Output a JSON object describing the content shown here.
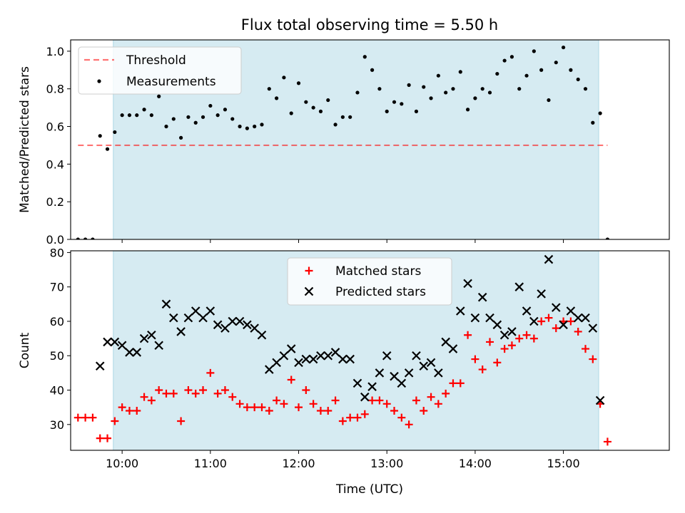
{
  "figure": {
    "title": "Flux total observing time = 5.50 h",
    "xlabel": "Time (UTC)"
  },
  "colors": {
    "shade": "#add8e6",
    "threshold": "#ff0000",
    "matched": "#ff0000",
    "predicted": "#000000",
    "measurement": "#000000"
  },
  "chart_data": [
    {
      "type": "scatter",
      "ylabel": "Matched/Predicted stars",
      "ylim": [
        0.0,
        1.06
      ],
      "xlim": [
        "09:25",
        "16:12"
      ],
      "grid": false,
      "legend_position": "top-left",
      "yticks": [
        0.0,
        0.2,
        0.4,
        0.6,
        0.8,
        1.0
      ],
      "ytick_labels": [
        "0.0",
        "0.2",
        "0.4",
        "0.6",
        "0.8",
        "1.0"
      ],
      "shaded_span": [
        "09:54",
        "15:24"
      ],
      "threshold": {
        "name": "Threshold",
        "y": 0.5,
        "x_range": [
          "09:30",
          "15:30"
        ]
      },
      "series": [
        {
          "name": "Measurements",
          "x": [
            "09:30",
            "09:35",
            "09:40",
            "09:45",
            "09:50",
            "09:55",
            "10:00",
            "10:05",
            "10:10",
            "10:15",
            "10:20",
            "10:25",
            "10:30",
            "10:35",
            "10:40",
            "10:45",
            "10:50",
            "10:55",
            "11:00",
            "11:05",
            "11:10",
            "11:15",
            "11:20",
            "11:25",
            "11:30",
            "11:35",
            "11:40",
            "11:45",
            "11:50",
            "11:55",
            "12:00",
            "12:05",
            "12:10",
            "12:15",
            "12:20",
            "12:25",
            "12:30",
            "12:35",
            "12:40",
            "12:45",
            "12:50",
            "12:55",
            "13:00",
            "13:05",
            "13:10",
            "13:15",
            "13:20",
            "13:25",
            "13:30",
            "13:35",
            "13:40",
            "13:45",
            "13:50",
            "13:55",
            "14:00",
            "14:05",
            "14:10",
            "14:15",
            "14:20",
            "14:25",
            "14:30",
            "14:35",
            "14:40",
            "14:45",
            "14:50",
            "14:55",
            "15:00",
            "15:05",
            "15:10",
            "15:15",
            "15:20",
            "15:25",
            "15:30"
          ],
          "y": [
            0.0,
            0.0,
            0.0,
            0.55,
            0.48,
            0.57,
            0.66,
            0.66,
            0.66,
            0.69,
            0.66,
            0.76,
            0.6,
            0.64,
            0.54,
            0.65,
            0.62,
            0.65,
            0.71,
            0.66,
            0.69,
            0.64,
            0.6,
            0.59,
            0.6,
            0.61,
            0.8,
            0.75,
            0.86,
            0.67,
            0.83,
            0.73,
            0.7,
            0.68,
            0.74,
            0.61,
            0.65,
            0.65,
            0.78,
            0.97,
            0.9,
            0.8,
            0.68,
            0.73,
            0.72,
            0.82,
            0.68,
            0.81,
            0.75,
            0.87,
            0.78,
            0.8,
            0.89,
            0.69,
            0.75,
            0.8,
            0.78,
            0.88,
            0.95,
            0.97,
            0.8,
            0.87,
            1.0,
            0.9,
            0.74,
            0.94,
            1.02,
            0.9,
            0.85,
            0.8,
            0.62,
            0.67,
            0.0
          ]
        }
      ]
    },
    {
      "type": "scatter",
      "ylabel": "Count",
      "ylim": [
        22.5,
        80.5
      ],
      "xlim": [
        "09:25",
        "16:12"
      ],
      "grid": false,
      "legend_position": "top-center",
      "yticks": [
        30,
        40,
        50,
        60,
        70,
        80
      ],
      "ytick_labels": [
        "30",
        "40",
        "50",
        "60",
        "70",
        "80"
      ],
      "xticks": [
        "10:00",
        "11:00",
        "12:00",
        "13:00",
        "14:00",
        "15:00"
      ],
      "xtick_labels": [
        "10:00",
        "11:00",
        "12:00",
        "13:00",
        "14:00",
        "15:00"
      ],
      "shaded_span": [
        "09:54",
        "15:24"
      ],
      "series": [
        {
          "name": "Matched stars",
          "marker": "plus",
          "x": [
            "09:30",
            "09:35",
            "09:40",
            "09:45",
            "09:50",
            "09:55",
            "10:00",
            "10:05",
            "10:10",
            "10:15",
            "10:20",
            "10:25",
            "10:30",
            "10:35",
            "10:40",
            "10:45",
            "10:50",
            "10:55",
            "11:00",
            "11:05",
            "11:10",
            "11:15",
            "11:20",
            "11:25",
            "11:30",
            "11:35",
            "11:40",
            "11:45",
            "11:50",
            "11:55",
            "12:00",
            "12:05",
            "12:10",
            "12:15",
            "12:20",
            "12:25",
            "12:30",
            "12:35",
            "12:40",
            "12:45",
            "12:50",
            "12:55",
            "13:00",
            "13:05",
            "13:10",
            "13:15",
            "13:20",
            "13:25",
            "13:30",
            "13:35",
            "13:40",
            "13:45",
            "13:50",
            "13:55",
            "14:00",
            "14:05",
            "14:10",
            "14:15",
            "14:20",
            "14:25",
            "14:30",
            "14:35",
            "14:40",
            "14:45",
            "14:50",
            "14:55",
            "15:00",
            "15:05",
            "15:10",
            "15:15",
            "15:20",
            "15:25",
            "15:30"
          ],
          "y": [
            32,
            32,
            32,
            26,
            26,
            31,
            35,
            34,
            34,
            38,
            37,
            40,
            39,
            39,
            31,
            40,
            39,
            40,
            45,
            39,
            40,
            38,
            36,
            35,
            35,
            35,
            34,
            37,
            36,
            43,
            35,
            40,
            36,
            34,
            34,
            37,
            31,
            32,
            32,
            33,
            37,
            37,
            36,
            34,
            32,
            30,
            37,
            34,
            38,
            36,
            39,
            42,
            42,
            56,
            49,
            46,
            54,
            48,
            52,
            53,
            55,
            56,
            55,
            60,
            61,
            58,
            60,
            60,
            57,
            52,
            49,
            36,
            25
          ]
        },
        {
          "name": "Predicted stars",
          "marker": "x",
          "x": [
            "09:45",
            "09:50",
            "09:55",
            "10:00",
            "10:05",
            "10:10",
            "10:15",
            "10:20",
            "10:25",
            "10:30",
            "10:35",
            "10:40",
            "10:45",
            "10:50",
            "10:55",
            "11:00",
            "11:05",
            "11:10",
            "11:15",
            "11:20",
            "11:25",
            "11:30",
            "11:35",
            "11:40",
            "11:45",
            "11:50",
            "11:55",
            "12:00",
            "12:05",
            "12:10",
            "12:15",
            "12:20",
            "12:25",
            "12:30",
            "12:35",
            "12:40",
            "12:45",
            "12:50",
            "12:55",
            "13:00",
            "13:05",
            "13:10",
            "13:15",
            "13:20",
            "13:25",
            "13:30",
            "13:35",
            "13:40",
            "13:45",
            "13:50",
            "13:55",
            "14:00",
            "14:05",
            "14:10",
            "14:15",
            "14:20",
            "14:25",
            "14:30",
            "14:35",
            "14:40",
            "14:45",
            "14:50",
            "14:55",
            "15:00",
            "15:05",
            "15:10",
            "15:15",
            "15:20",
            "15:25"
          ],
          "y": [
            47,
            54,
            54,
            53,
            51,
            51,
            55,
            56,
            53,
            65,
            61,
            57,
            61,
            63,
            61,
            63,
            59,
            58,
            60,
            60,
            59,
            58,
            56,
            46,
            48,
            50,
            52,
            48,
            49,
            49,
            50,
            50,
            51,
            49,
            49,
            42,
            38,
            41,
            45,
            50,
            44,
            42,
            45,
            50,
            47,
            48,
            45,
            54,
            52,
            63,
            71,
            61,
            67,
            61,
            59,
            56,
            57,
            70,
            63,
            60,
            68,
            78,
            64,
            59,
            63,
            61,
            61,
            58,
            37
          ]
        }
      ]
    }
  ]
}
